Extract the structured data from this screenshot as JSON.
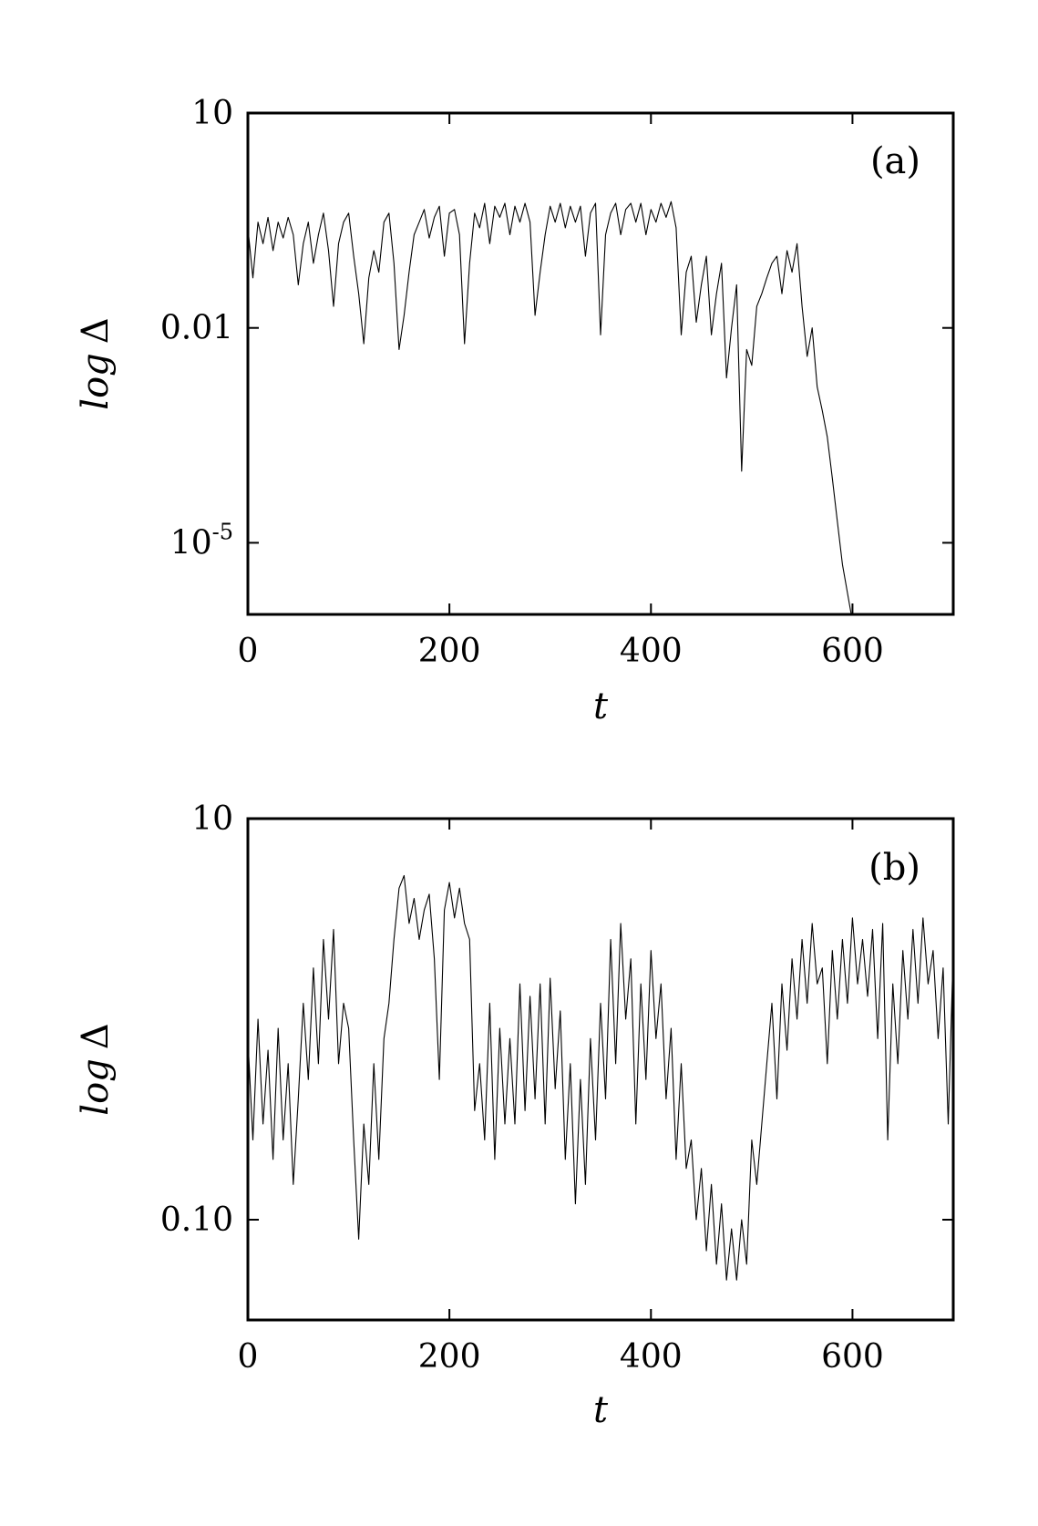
{
  "chart_data": [
    {
      "type": "line",
      "panel_label": "(a)",
      "xlabel": "t",
      "ylabel": "log Δ",
      "ylabel_parts": [
        "log",
        "Δ"
      ],
      "xlim": [
        0,
        700
      ],
      "ylim_log10": [
        -6,
        1
      ],
      "yscale": "log",
      "xticks": [
        0,
        200,
        400,
        600
      ],
      "xtick_labels": [
        "0",
        "200",
        "400",
        "600"
      ],
      "yticks_log10": [
        1,
        -2,
        -5
      ],
      "ytick_labels": [
        {
          "base": "10",
          "exp": ""
        },
        {
          "base": "0.01",
          "exp": ""
        },
        {
          "base": "10",
          "exp": "-5"
        }
      ],
      "grid": false,
      "series": [
        {
          "x": [
            0,
            5,
            10,
            15,
            20,
            25,
            30,
            35,
            40,
            45,
            50,
            55,
            60,
            65,
            70,
            75,
            80,
            85,
            90,
            95,
            100,
            105,
            110,
            115,
            120,
            125,
            130,
            135,
            140,
            145,
            150,
            155,
            160,
            165,
            170,
            175,
            180,
            185,
            190,
            195,
            200,
            205,
            210,
            215,
            220,
            225,
            230,
            235,
            240,
            245,
            250,
            255,
            260,
            265,
            270,
            275,
            280,
            285,
            290,
            295,
            300,
            305,
            310,
            315,
            320,
            325,
            330,
            335,
            340,
            345,
            350,
            355,
            360,
            365,
            370,
            375,
            380,
            385,
            390,
            395,
            400,
            405,
            410,
            415,
            420,
            425,
            430,
            435,
            440,
            445,
            450,
            455,
            460,
            465,
            470,
            475,
            480,
            485,
            490,
            495,
            500,
            505,
            510,
            515,
            520,
            525,
            530,
            535,
            540,
            545,
            550,
            555,
            560,
            565,
            570,
            575,
            580,
            585,
            590,
            595,
            600,
            603
          ],
          "y": [
            0.25,
            0.05,
            0.3,
            0.15,
            0.35,
            0.12,
            0.3,
            0.18,
            0.35,
            0.2,
            0.04,
            0.15,
            0.3,
            0.08,
            0.2,
            0.4,
            0.12,
            0.02,
            0.15,
            0.3,
            0.4,
            0.1,
            0.03,
            0.006,
            0.05,
            0.12,
            0.06,
            0.3,
            0.4,
            0.08,
            0.005,
            0.015,
            0.06,
            0.2,
            0.3,
            0.45,
            0.18,
            0.35,
            0.5,
            0.1,
            0.4,
            0.45,
            0.2,
            0.006,
            0.08,
            0.4,
            0.25,
            0.55,
            0.15,
            0.5,
            0.35,
            0.55,
            0.2,
            0.5,
            0.3,
            0.55,
            0.3,
            0.015,
            0.06,
            0.2,
            0.5,
            0.3,
            0.55,
            0.25,
            0.5,
            0.3,
            0.5,
            0.1,
            0.4,
            0.55,
            0.008,
            0.2,
            0.4,
            0.55,
            0.2,
            0.45,
            0.55,
            0.3,
            0.55,
            0.2,
            0.45,
            0.3,
            0.55,
            0.35,
            0.58,
            0.25,
            0.008,
            0.06,
            0.1,
            0.012,
            0.04,
            0.1,
            0.008,
            0.03,
            0.08,
            0.002,
            0.01,
            0.04,
            0.0001,
            0.005,
            0.003,
            0.02,
            0.03,
            0.05,
            0.08,
            0.1,
            0.03,
            0.12,
            0.06,
            0.15,
            0.02,
            0.004,
            0.01,
            0.0015,
            0.0007,
            0.0003,
            8e-05,
            2e-05,
            5e-06,
            2e-06,
            8e-07,
            3e-07
          ]
        }
      ]
    },
    {
      "type": "line",
      "panel_label": "(b)",
      "xlabel": "t",
      "ylabel": "log Δ",
      "ylabel_parts": [
        "log",
        "Δ"
      ],
      "xlim": [
        0,
        700
      ],
      "ylim_log10": [
        -1.5,
        1
      ],
      "yscale": "log",
      "xticks": [
        0,
        200,
        400,
        600
      ],
      "xtick_labels": [
        "0",
        "200",
        "400",
        "600"
      ],
      "yticks_log10": [
        1,
        -1
      ],
      "ytick_labels": [
        {
          "base": "10",
          "exp": ""
        },
        {
          "base": "0.10",
          "exp": ""
        }
      ],
      "grid": false,
      "series": [
        {
          "x": [
            0,
            5,
            10,
            15,
            20,
            25,
            30,
            35,
            40,
            45,
            50,
            55,
            60,
            65,
            70,
            75,
            80,
            85,
            90,
            95,
            100,
            105,
            110,
            115,
            120,
            125,
            130,
            135,
            140,
            145,
            150,
            155,
            160,
            165,
            170,
            175,
            180,
            185,
            190,
            195,
            200,
            205,
            210,
            215,
            220,
            225,
            230,
            235,
            240,
            245,
            250,
            255,
            260,
            265,
            270,
            275,
            280,
            285,
            290,
            295,
            300,
            305,
            310,
            315,
            320,
            325,
            330,
            335,
            340,
            345,
            350,
            355,
            360,
            365,
            370,
            375,
            380,
            385,
            390,
            395,
            400,
            405,
            410,
            415,
            420,
            425,
            430,
            435,
            440,
            445,
            450,
            455,
            460,
            465,
            470,
            475,
            480,
            485,
            490,
            495,
            500,
            505,
            510,
            515,
            520,
            525,
            530,
            535,
            540,
            545,
            550,
            555,
            560,
            565,
            570,
            575,
            580,
            585,
            590,
            595,
            600,
            605,
            610,
            615,
            620,
            625,
            630,
            635,
            640,
            645,
            650,
            655,
            660,
            665,
            670,
            675,
            680,
            685,
            690,
            695,
            700
          ],
          "y": [
            0.8,
            0.25,
            1.0,
            0.3,
            0.7,
            0.2,
            0.9,
            0.25,
            0.6,
            0.15,
            0.4,
            1.2,
            0.5,
            1.8,
            0.6,
            2.5,
            1.0,
            2.8,
            0.6,
            1.2,
            0.9,
            0.25,
            0.08,
            0.3,
            0.15,
            0.6,
            0.2,
            0.8,
            1.2,
            2.5,
            4.5,
            5.2,
            3.0,
            4.0,
            2.5,
            3.5,
            4.2,
            2.0,
            0.5,
            3.5,
            4.8,
            3.2,
            4.5,
            3.0,
            2.5,
            0.35,
            0.6,
            0.25,
            1.2,
            0.2,
            0.9,
            0.3,
            0.8,
            0.3,
            1.5,
            0.35,
            1.3,
            0.4,
            1.5,
            0.3,
            1.6,
            0.45,
            1.1,
            0.2,
            0.6,
            0.12,
            0.5,
            0.15,
            0.8,
            0.25,
            1.2,
            0.4,
            2.5,
            0.6,
            3.0,
            1.0,
            2.0,
            0.3,
            1.5,
            0.5,
            2.2,
            0.8,
            1.5,
            0.4,
            0.9,
            0.2,
            0.6,
            0.18,
            0.25,
            0.1,
            0.18,
            0.07,
            0.15,
            0.06,
            0.12,
            0.05,
            0.09,
            0.05,
            0.1,
            0.06,
            0.25,
            0.15,
            0.3,
            0.6,
            1.2,
            0.4,
            1.5,
            0.7,
            2.0,
            1.0,
            2.5,
            1.2,
            3.0,
            1.5,
            1.8,
            0.6,
            2.2,
            1.0,
            2.5,
            1.2,
            3.2,
            1.5,
            2.5,
            1.3,
            2.8,
            0.8,
            3.0,
            0.25,
            1.5,
            0.6,
            2.2,
            1.0,
            2.8,
            1.2,
            3.2,
            1.5,
            2.2,
            0.8,
            1.8,
            0.3,
            2.2
          ]
        }
      ]
    }
  ]
}
